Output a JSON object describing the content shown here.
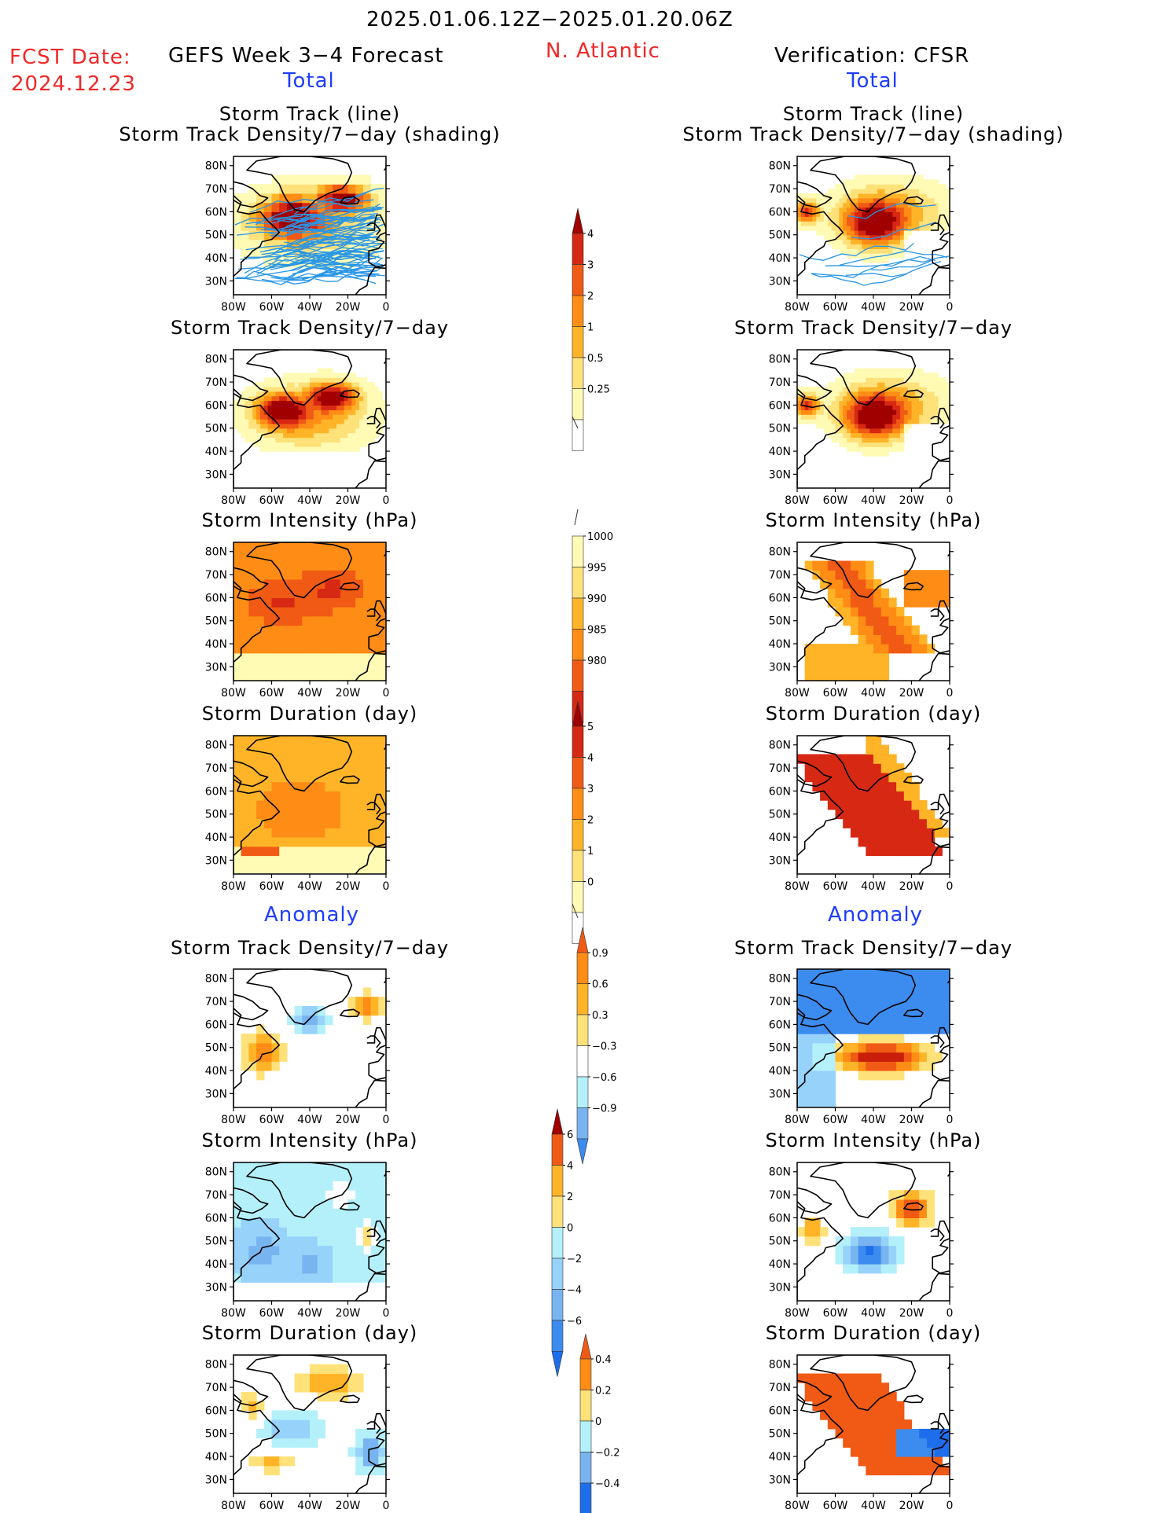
{
  "header": {
    "date_range": "2025.01.06.12Z−2025.01.20.06Z",
    "fcst_label": "FCST Date:",
    "fcst_date": "2024.12.23",
    "left_title": "GEFS Week 3−4 Forecast",
    "region": "N. Atlantic",
    "right_title": "Verification: CFSR",
    "total_label": "Total",
    "anomaly_label": "Anomaly"
  },
  "panel_titles": {
    "track_line": "Storm Track (line)",
    "track_shading": "Storm Track Density/7−day (shading)",
    "density": "Storm Track Density/7−day",
    "intensity": "Storm Intensity (hPa)",
    "duration": "Storm Duration (day)"
  },
  "axes": {
    "lat_ticks": [
      "80N",
      "70N",
      "60N",
      "50N",
      "40N",
      "30N"
    ],
    "lon_ticks": [
      "80W",
      "60W",
      "40W",
      "20W",
      "0"
    ]
  },
  "colors": {
    "warm": [
      "#fffab4",
      "#ffe17a",
      "#ffb428",
      "#ff8c14",
      "#f05a14",
      "#d72814",
      "#a00000"
    ],
    "anom_neg": [
      "#b4f0fa",
      "#96d2fa",
      "#78b4f0",
      "#3c8cf0",
      "#1e6eeb"
    ],
    "anom_pos": [
      "#ffe17a",
      "#ffb428",
      "#ff8c14",
      "#f05a14",
      "#c81e0a"
    ],
    "track_line": "#2896e6"
  },
  "chart_data": [
    {
      "type": "heatmap",
      "panel": "forecast-total-track-density",
      "title": "Storm Track (line) / Storm Track Density/7-day (shading)",
      "colorbar": [
        "0.25",
        "0.5",
        "1",
        "2",
        "3",
        "4"
      ]
    },
    {
      "type": "heatmap",
      "panel": "forecast-total-density",
      "title": "Storm Track Density/7-day",
      "colorbar": [
        "0.25",
        "0.5",
        "1",
        "2",
        "3",
        "4"
      ]
    },
    {
      "type": "heatmap",
      "panel": "forecast-total-intensity",
      "title": "Storm Intensity (hPa)",
      "colorbar": [
        "1000",
        "995",
        "990",
        "985",
        "980"
      ]
    },
    {
      "type": "heatmap",
      "panel": "forecast-total-duration",
      "title": "Storm Duration (day)",
      "colorbar": [
        "5",
        "4",
        "3",
        "2",
        "1",
        "0"
      ]
    },
    {
      "type": "heatmap",
      "panel": "forecast-anomaly-density",
      "title": "Storm Track Density/7-day",
      "colorbar": [
        "0.9",
        "0.6",
        "0.3",
        "−0.3",
        "−0.6",
        "−0.9"
      ]
    },
    {
      "type": "heatmap",
      "panel": "forecast-anomaly-intensity",
      "title": "Storm Intensity (hPa)",
      "colorbar": [
        "6",
        "4",
        "2",
        "0",
        "−2",
        "−4",
        "−6"
      ]
    },
    {
      "type": "heatmap",
      "panel": "forecast-anomaly-duration",
      "title": "Storm Duration (day)",
      "colorbar": [
        "0.4",
        "0.2",
        "0",
        "−0.2",
        "−0.4"
      ]
    }
  ],
  "colorbars": [
    {
      "labels": [
        "4",
        "3",
        "2",
        "1",
        "0.5",
        "0.25"
      ],
      "top_arrow": true,
      "bottom_arrow": false
    },
    {
      "labels": [
        "1000",
        "995",
        "990",
        "985",
        "980"
      ],
      "top_arrow": false,
      "bottom_arrow": true
    },
    {
      "labels": [
        "5",
        "4",
        "3",
        "2",
        "1",
        "0"
      ],
      "top_arrow": true,
      "bottom_arrow": false
    },
    {
      "labels": [
        "0.9",
        "0.6",
        "0.3",
        "−0.3",
        "−0.6",
        "−0.9"
      ],
      "top_arrow": true,
      "bottom_arrow": true
    },
    {
      "labels": [
        "6",
        "4",
        "2",
        "0",
        "−2",
        "−4",
        "−6"
      ],
      "top_arrow": true,
      "bottom_arrow": true
    },
    {
      "labels": [
        "0.4",
        "0.2",
        "0",
        "−0.2",
        "−0.4"
      ],
      "top_arrow": true,
      "bottom_arrow": true
    }
  ]
}
